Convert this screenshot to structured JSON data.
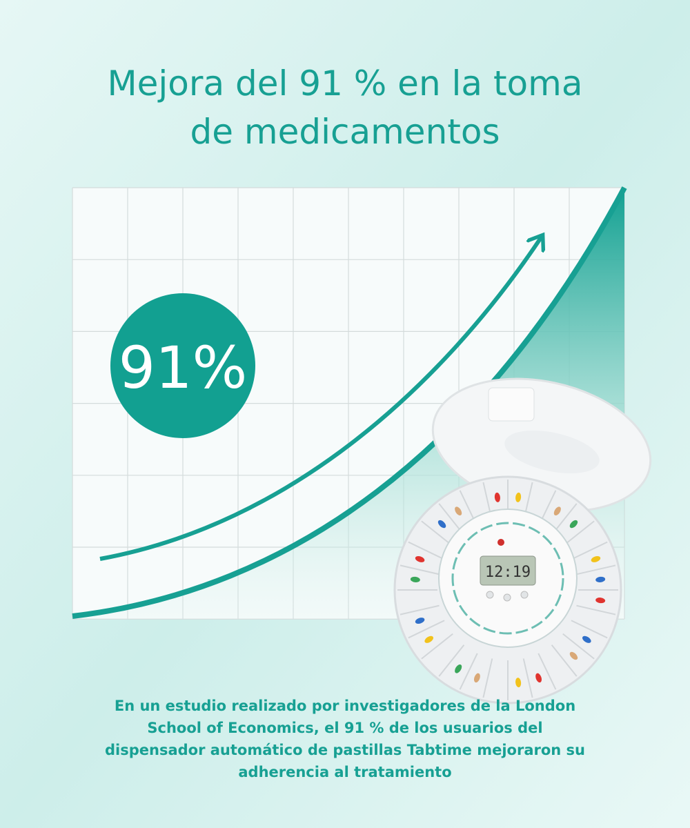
{
  "title": {
    "lines": [
      "Mejora del 91 % en la toma",
      "de medicamentos"
    ]
  },
  "badge": "91%",
  "device": {
    "display": "12:19"
  },
  "body": {
    "lines": [
      "En un estudio realizado por investigadores de la London",
      "School of Economics, el 91 % de los usuarios del",
      "dispensador automático de pastillas Tabtime mejoraron su",
      "adherencia al tratamiento"
    ]
  }
}
